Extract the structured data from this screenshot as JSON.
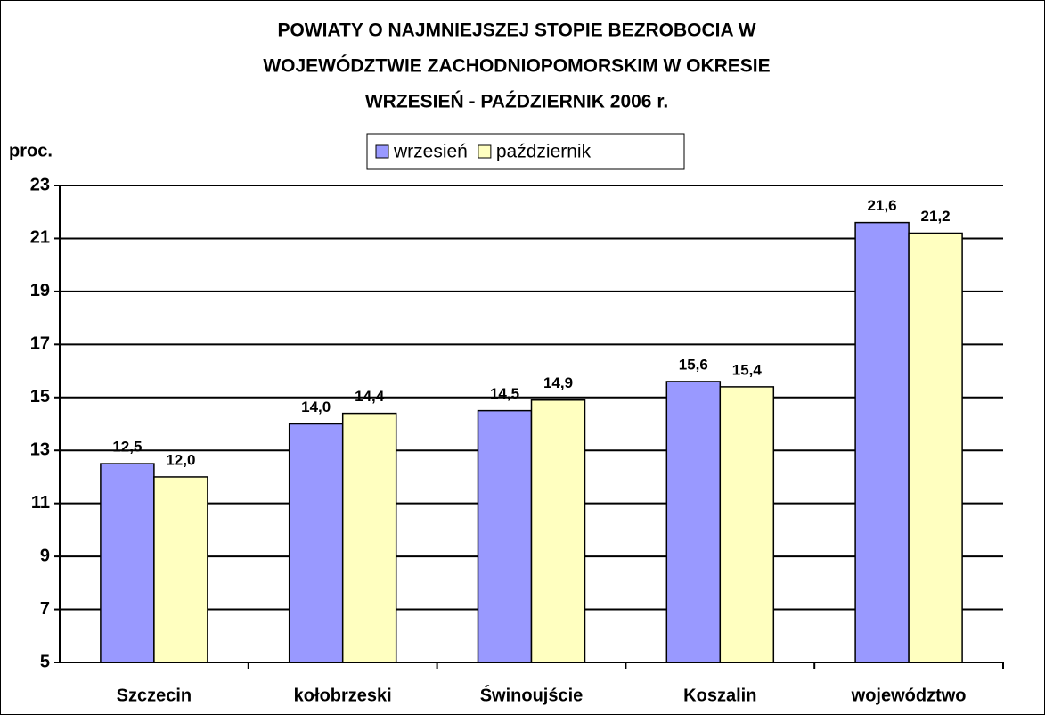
{
  "chart_data": {
    "type": "bar",
    "title": [
      "POWIATY O NAJMNIEJSZEJ STOPIE BEZROBOCIA W",
      "WOJEWÓDZTWIE ZACHODNIOPOMORSKIM W OKRESIE",
      "WRZESIEŃ - PAŹDZIERNIK 2006 r."
    ],
    "y_label": "proc.",
    "categories": [
      "Szczecin",
      "kołobrzeski",
      "Świnoujście",
      "Koszalin",
      "województwo"
    ],
    "series": [
      {
        "name": "wrzesień",
        "color": "#9999ff",
        "values": [
          12.5,
          14.0,
          14.5,
          15.6,
          21.6
        ],
        "value_labels": [
          "12,5",
          "14,0",
          "14,5",
          "15,6",
          "21,6"
        ]
      },
      {
        "name": "październik",
        "color": "#ffffc0",
        "values": [
          12.0,
          14.4,
          14.9,
          15.4,
          21.2
        ],
        "value_labels": [
          "12,0",
          "14,4",
          "14,9",
          "15,4",
          "21,2"
        ]
      }
    ],
    "ylim": [
      5,
      23
    ],
    "yticks": [
      5,
      7,
      9,
      11,
      13,
      15,
      17,
      19,
      21,
      23
    ],
    "grid": true,
    "legend": "top"
  }
}
